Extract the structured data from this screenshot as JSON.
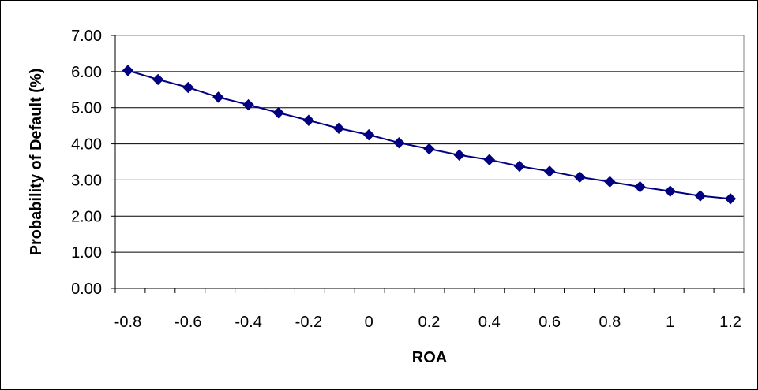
{
  "chart_data": {
    "type": "line",
    "title": "",
    "xlabel": "ROA",
    "ylabel": "Probability of Default (%)",
    "ylim": [
      0,
      7
    ],
    "yticks": [
      "0.00",
      "1.00",
      "2.00",
      "3.00",
      "4.00",
      "5.00",
      "6.00",
      "7.00"
    ],
    "xticks": [
      "-0.8",
      "-0.6",
      "-0.4",
      "-0.2",
      "0",
      "0.2",
      "0.4",
      "0.6",
      "0.8",
      "1",
      "1.2"
    ],
    "grid": "horizontal",
    "legend": "none",
    "colors": {
      "series": "#000080",
      "grid": "#000000",
      "plot_border": "#808080"
    },
    "series": [
      {
        "x": [
          -0.8,
          -0.7,
          -0.6,
          -0.5,
          -0.4,
          -0.3,
          -0.2,
          -0.1,
          0,
          0.1,
          0.2,
          0.3,
          0.4,
          0.5,
          0.6,
          0.7,
          0.8,
          0.9,
          1.0,
          1.1,
          1.2
        ],
        "values": [
          6.03,
          5.78,
          5.56,
          5.29,
          5.08,
          4.86,
          4.65,
          4.43,
          4.25,
          4.03,
          3.86,
          3.69,
          3.56,
          3.38,
          3.24,
          3.08,
          2.95,
          2.81,
          2.69,
          2.56,
          2.48
        ]
      }
    ]
  }
}
